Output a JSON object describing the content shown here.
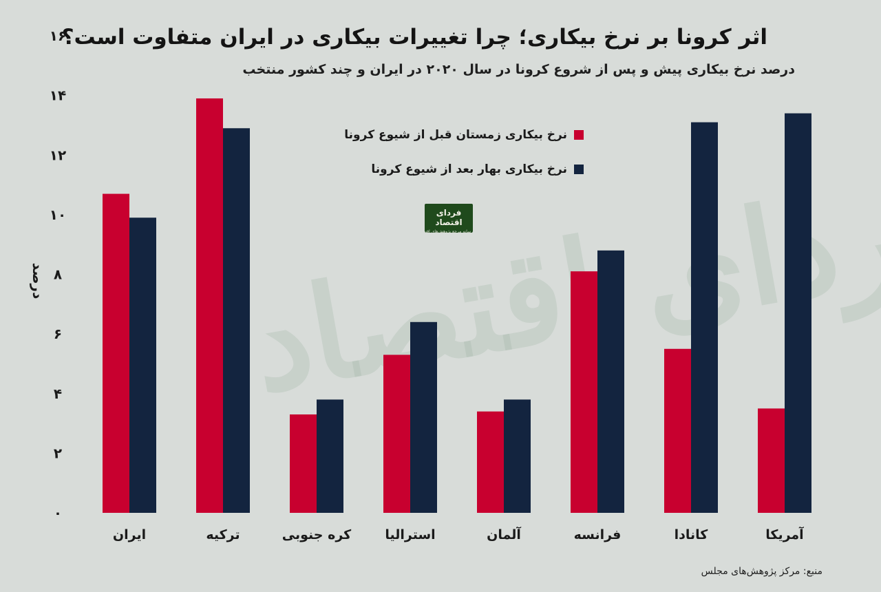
{
  "title": "اثر کرونا بر نرخ بیکاری؛ چرا تغییرات بیکاری در ایران متفاوت است؟",
  "subtitle": "درصد نرخ بیکاری پیش و پس از شروع کرونا در سال ۲۰۲۰ در ایران و چند کشور منتخب",
  "source": "منبع: مرکز پژوهش‌های مجلس",
  "logo": {
    "main": "فردای اقتصاد",
    "sub": "رسانه مرجع پژوهش‌های اقتصادی"
  },
  "watermark": "فردای اقتصاد",
  "colors": {
    "before": "#c8002f",
    "after": "#13243f",
    "background": "#d8dcd9"
  },
  "chart_data": {
    "type": "bar",
    "ylabel": "درصد",
    "ylim": [
      0,
      16
    ],
    "yticks": [
      0,
      2,
      4,
      6,
      8,
      10,
      12,
      14,
      16
    ],
    "ytick_labels": [
      "۰",
      "۲",
      "۴",
      "۶",
      "۸",
      "۱۰",
      "۱۲",
      "۱۴",
      "۱۶"
    ],
    "grid": false,
    "legend_position": "top-center",
    "categories": [
      "ایران",
      "ترکیه",
      "کره جنوبی",
      "استرالیا",
      "آلمان",
      "فرانسه",
      "کانادا",
      "آمریکا"
    ],
    "series": [
      {
        "name": "نرخ بیکاری زمستان قبل از شیوع کرونا",
        "color": "#c8002f",
        "values": [
          10.7,
          13.9,
          3.3,
          5.3,
          3.4,
          8.1,
          5.5,
          3.5
        ]
      },
      {
        "name": "نرخ بیکاری بهار بعد از شیوع کرونا",
        "color": "#13243f",
        "values": [
          9.9,
          12.9,
          3.8,
          6.4,
          3.8,
          8.8,
          13.1,
          13.4
        ]
      }
    ]
  }
}
